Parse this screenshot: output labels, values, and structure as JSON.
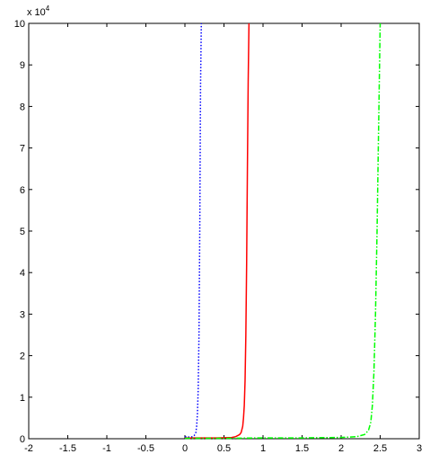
{
  "chart_data": {
    "type": "line",
    "title": "",
    "xlabel": "",
    "ylabel": "",
    "y_multiplier_label": "x 10",
    "y_multiplier_exponent": "4",
    "xlim": [
      -2,
      3
    ],
    "ylim": [
      0,
      10
    ],
    "x_ticks": [
      -2,
      -1.5,
      -1,
      -0.5,
      0,
      0.5,
      1,
      1.5,
      2,
      2.5,
      3
    ],
    "x_tick_labels": [
      "-2",
      "-1.5",
      "-1",
      "-0.5",
      "0",
      "0.5",
      "1",
      "1.5",
      "2",
      "2.5",
      "3"
    ],
    "y_ticks": [
      0,
      1,
      2,
      3,
      4,
      5,
      6,
      7,
      8,
      9,
      10
    ],
    "y_tick_labels": [
      "0",
      "1",
      "2",
      "3",
      "4",
      "5",
      "6",
      "7",
      "8",
      "9",
      "10"
    ],
    "grid": false,
    "legend": "none",
    "series": [
      {
        "color": "#0000ff",
        "style": "dotted",
        "x": [
          0.0,
          0.03,
          0.05,
          0.08,
          0.1,
          0.12,
          0.14,
          0.15,
          0.16,
          0.17,
          0.18,
          0.19,
          0.2,
          0.21
        ],
        "y": [
          0.05,
          0.05,
          0.04,
          0.04,
          0.05,
          0.08,
          0.15,
          0.3,
          0.6,
          1.2,
          2.5,
          5.0,
          8.5,
          10.0
        ]
      },
      {
        "color": "#ff0000",
        "style": "solid",
        "x": [
          0.0,
          0.4,
          0.6,
          0.65,
          0.7,
          0.72,
          0.74,
          0.75,
          0.76,
          0.77,
          0.78,
          0.79,
          0.8,
          0.81,
          0.82
        ],
        "y": [
          0.02,
          0.02,
          0.03,
          0.05,
          0.1,
          0.15,
          0.3,
          0.5,
          0.8,
          1.4,
          2.5,
          4.2,
          6.5,
          8.6,
          10.0
        ]
      },
      {
        "color": "#00ff00",
        "style": "dashdot",
        "x": [
          0.0,
          0.5,
          1.0,
          1.5,
          2.0,
          2.2,
          2.3,
          2.35,
          2.38,
          2.4,
          2.42,
          2.44,
          2.46,
          2.48,
          2.5
        ],
        "y": [
          0.01,
          0.01,
          0.02,
          0.02,
          0.03,
          0.05,
          0.1,
          0.2,
          0.4,
          0.8,
          1.6,
          3.0,
          5.0,
          7.5,
          10.0
        ]
      }
    ]
  }
}
